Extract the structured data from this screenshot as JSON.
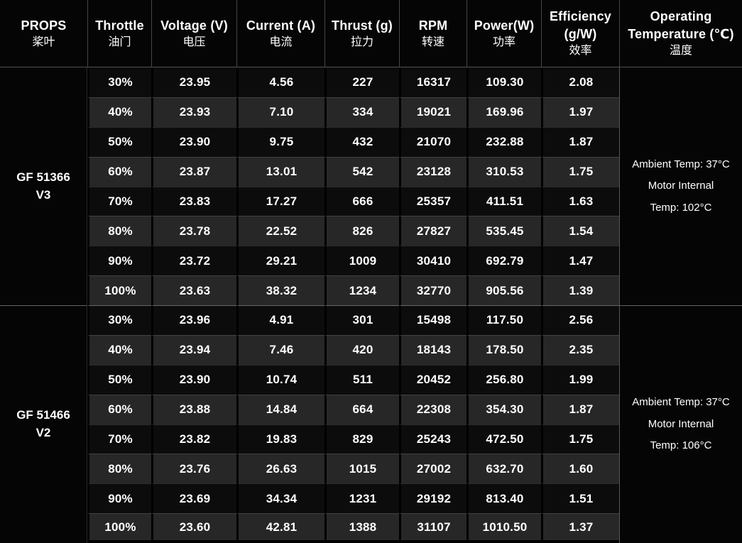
{
  "colors": {
    "background": "#000000",
    "row_dark": "#0c0c0c",
    "row_light": "#272727",
    "text": "#ffffff",
    "divider_gray": "#8a8a8a"
  },
  "table": {
    "columns": [
      {
        "key": "props",
        "en_lines": [
          "PROPS"
        ],
        "zh": "桨叶"
      },
      {
        "key": "throttle",
        "en_lines": [
          "Throttle"
        ],
        "zh": "油门"
      },
      {
        "key": "voltage",
        "en_lines": [
          "Voltage (V)"
        ],
        "zh": "电压"
      },
      {
        "key": "current",
        "en_lines": [
          "Current (A)"
        ],
        "zh": "电流"
      },
      {
        "key": "thrust",
        "en_lines": [
          "Thrust (g)"
        ],
        "zh": "拉力"
      },
      {
        "key": "rpm",
        "en_lines": [
          "RPM"
        ],
        "zh": "转速"
      },
      {
        "key": "power",
        "en_lines": [
          "Power(W)"
        ],
        "zh": "功率"
      },
      {
        "key": "efficiency",
        "en_lines": [
          "Efficiency",
          "(g/W)"
        ],
        "zh": "效率"
      },
      {
        "key": "temperature",
        "en_lines": [
          "Operating",
          "Temperature (℃)"
        ],
        "zh": "温度"
      }
    ],
    "groups": [
      {
        "model": "GF 51366",
        "version": "V3",
        "temperature_lines": [
          "Ambient Temp: 37°C",
          "Motor Internal",
          "Temp: 102°C"
        ],
        "rows": [
          [
            "30%",
            "23.95",
            "4.56",
            "227",
            "16317",
            "109.30",
            "2.08"
          ],
          [
            "40%",
            "23.93",
            "7.10",
            "334",
            "19021",
            "169.96",
            "1.97"
          ],
          [
            "50%",
            "23.90",
            "9.75",
            "432",
            "21070",
            "232.88",
            "1.87"
          ],
          [
            "60%",
            "23.87",
            "13.01",
            "542",
            "23128",
            "310.53",
            "1.75"
          ],
          [
            "70%",
            "23.83",
            "17.27",
            "666",
            "25357",
            "411.51",
            "1.63"
          ],
          [
            "80%",
            "23.78",
            "22.52",
            "826",
            "27827",
            "535.45",
            "1.54"
          ],
          [
            "90%",
            "23.72",
            "29.21",
            "1009",
            "30410",
            "692.79",
            "1.47"
          ],
          [
            "100%",
            "23.63",
            "38.32",
            "1234",
            "32770",
            "905.56",
            "1.39"
          ]
        ]
      },
      {
        "model": "GF 51466",
        "version": "V2",
        "temperature_lines": [
          "Ambient Temp: 37°C",
          "Motor Internal",
          "Temp: 106°C"
        ],
        "rows": [
          [
            "30%",
            "23.96",
            "4.91",
            "301",
            "15498",
            "117.50",
            "2.56"
          ],
          [
            "40%",
            "23.94",
            "7.46",
            "420",
            "18143",
            "178.50",
            "2.35"
          ],
          [
            "50%",
            "23.90",
            "10.74",
            "511",
            "20452",
            "256.80",
            "1.99"
          ],
          [
            "60%",
            "23.88",
            "14.84",
            "664",
            "22308",
            "354.30",
            "1.87"
          ],
          [
            "70%",
            "23.82",
            "19.83",
            "829",
            "25243",
            "472.50",
            "1.75"
          ],
          [
            "80%",
            "23.76",
            "26.63",
            "1015",
            "27002",
            "632.70",
            "1.60"
          ],
          [
            "90%",
            "23.69",
            "34.34",
            "1231",
            "29192",
            "813.40",
            "1.51"
          ],
          [
            "100%",
            "23.60",
            "42.81",
            "1388",
            "31107",
            "1010.50",
            "1.37"
          ]
        ]
      }
    ]
  }
}
